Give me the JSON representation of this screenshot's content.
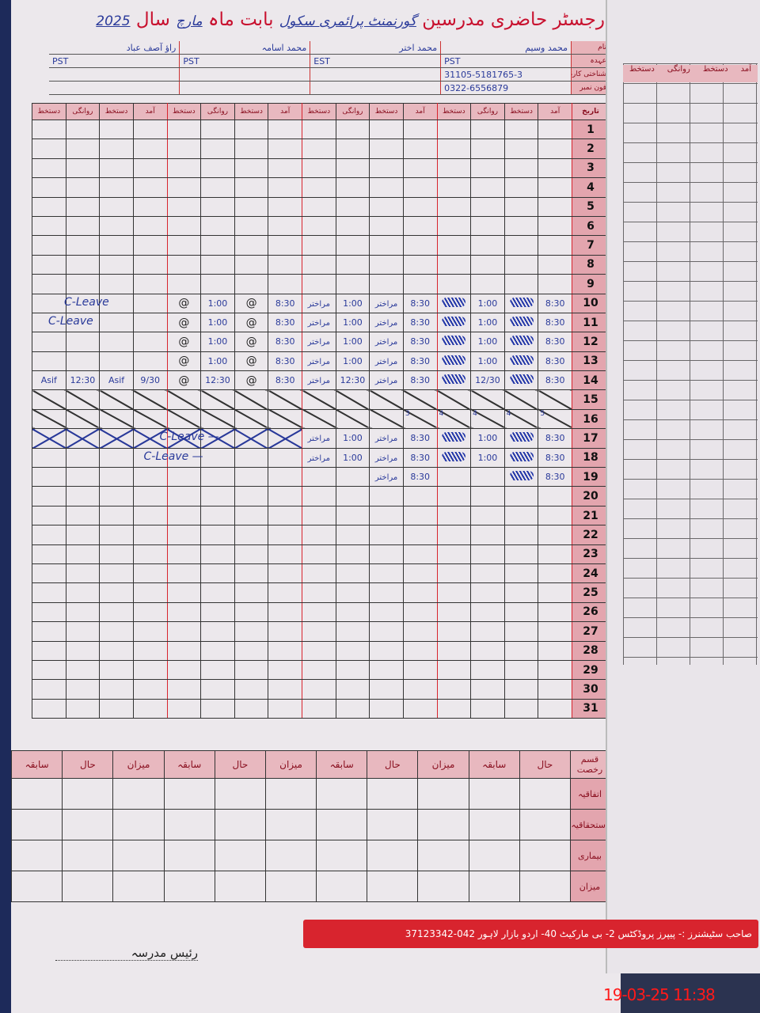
{
  "header": {
    "title": "رجسٹر حاضری مدرسین",
    "school": "گورنمنٹ پرائمری سکول",
    "month_label": "بابت ماہ",
    "month": "مارچ",
    "year_label": "سال",
    "year": "2025"
  },
  "info_labels": [
    "نام",
    "عہدہ",
    "شناختی کارڈ نمبر",
    "فون نمبر"
  ],
  "teachers": [
    {
      "name": "محمد وسیم",
      "designation": "PST",
      "cnic": "31105-5181765-3",
      "phone": "0322-6556879"
    },
    {
      "name": "محمد اختر",
      "designation": "EST",
      "cnic": "",
      "phone": ""
    },
    {
      "name": "محمد اسامہ",
      "designation": "PST",
      "cnic": "",
      "phone": ""
    },
    {
      "name": "راؤ آصف عباد",
      "designation": "PST",
      "cnic": "",
      "phone": ""
    }
  ],
  "columns": {
    "date": "تاریخ",
    "per_teacher": [
      "دستخط",
      "روانگی",
      "دستخط",
      "آمد"
    ]
  },
  "attendance": {
    "10": {
      "left_note": "C-Leave",
      "cells": [
        "",
        "",
        "",
        "",
        "@",
        "1:00",
        "@",
        "8:30",
        "مراختر",
        "1:00",
        "مراختر",
        "8:30",
        {
          "sig": true
        },
        "1:00",
        {
          "sig": true
        },
        "8:30"
      ]
    },
    "11": {
      "left_note": "C-Leave",
      "cells": [
        "",
        "",
        "",
        "",
        "@",
        "1:00",
        "@",
        "8:30",
        "مراختر",
        "1:00",
        "مراختر",
        "8:30",
        {
          "sig": true
        },
        "1:00",
        {
          "sig": true
        },
        "8:30"
      ]
    },
    "12": {
      "cells": [
        "",
        "",
        "",
        "",
        "@",
        "1:00",
        "@",
        "8:30",
        "مراختر",
        "1:00",
        "مراختر",
        "8:30",
        {
          "sig": true
        },
        "1:00",
        {
          "sig": true
        },
        "8:30"
      ]
    },
    "13": {
      "cells": [
        "",
        "",
        "",
        "",
        "@",
        "1:00",
        "@",
        "8:30",
        "مراختر",
        "1:00",
        "مراختر",
        "8:30",
        {
          "sig": true
        },
        "1:00",
        {
          "sig": true
        },
        "8:30"
      ]
    },
    "14": {
      "cells": [
        "Asif",
        "12:30",
        "Asif",
        "9/30",
        "@",
        "12:30",
        "@",
        "8:30",
        "مراختر",
        "12:30",
        "مراختر",
        "8:30",
        {
          "sig": true
        },
        "12/30",
        {
          "sig": true
        },
        "8:30"
      ]
    },
    "15": {
      "mark": "cross"
    },
    "16": {
      "mark": "cross",
      "small": [
        "3",
        "4",
        "4",
        "4",
        "5"
      ]
    },
    "17": {
      "mark_left": "xx",
      "mid_note": "C-Leave —",
      "cells": [
        "",
        "",
        "",
        "",
        "",
        "",
        "",
        "",
        "مراختر",
        "1:00",
        "مراختر",
        "8:30",
        {
          "sig": true
        },
        "1:00",
        {
          "sig": true
        },
        "8:30"
      ]
    },
    "18": {
      "mid_note": "C-Leave —",
      "cells": [
        "",
        "",
        "",
        "",
        "",
        "",
        "",
        "",
        "مراختر",
        "1:00",
        "مراختر",
        "8:30",
        {
          "sig": true
        },
        "1:00",
        {
          "sig": true
        },
        "8:30"
      ]
    },
    "19": {
      "cells": [
        "",
        "",
        "",
        "",
        "",
        "",
        "",
        "",
        "",
        "",
        "مراختر",
        "8:30",
        "",
        "",
        {
          "sig": true
        },
        "8:30"
      ]
    }
  },
  "summary": {
    "corner": "قسم رخصت",
    "headers": [
      "حال",
      "سابقہ",
      "میزان",
      "حال",
      "سابقہ",
      "میزان",
      "حال",
      "سابقہ",
      "میزان",
      "حال",
      "سابقہ"
    ],
    "rows": [
      "اتفاقیہ",
      "استحقاقیہ",
      "بیماری",
      "میزان"
    ]
  },
  "footer": {
    "principal": "رئیس مدرسہ",
    "printer": "صاحب سٹیشنرز :- پیپرز پروڈکٹس 2- بی مارکیٹ 40- اردو بازار لاہور 042-37123342",
    "timestamp": "19-03-25  11:38"
  },
  "right_page": {
    "headers": [
      "دستخط",
      "روانگی",
      "دستخط",
      "آمد"
    ]
  },
  "colors": {
    "red": "#d8242e",
    "pink": "#e8b8bf",
    "ink": "#2a3a9a"
  }
}
